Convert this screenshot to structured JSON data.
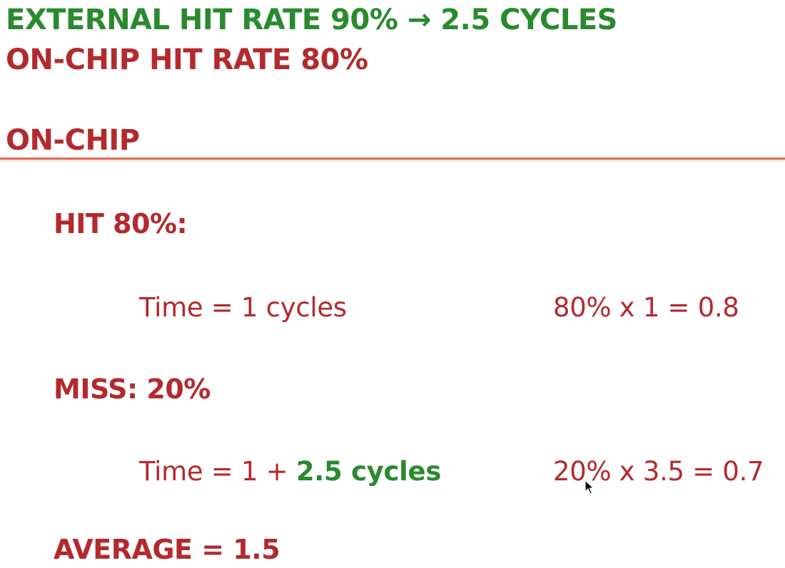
{
  "header": {
    "line1": "EXTERNAL HIT RATE 90% → 2.5 CYCLES",
    "line2": "ON-CHIP HIT RATE 80%"
  },
  "section": {
    "title": "ON-CHIP"
  },
  "hit": {
    "label": "HIT 80%:",
    "time": "Time = 1 cycles",
    "calc": "80% x 1 = 0.8"
  },
  "miss": {
    "label": "MISS: 20%",
    "time_prefix": "Time = 1 + ",
    "time_highlight": "2.5 cycles",
    "calc": "20% x 3.5 = 0.7"
  },
  "average": {
    "label": "AVERAGE = 1.5"
  },
  "colors": {
    "green": "#2a8a2e",
    "red": "#b32a2e",
    "rule": "#e06a55"
  },
  "icons": {
    "cursor": "mouse-pointer-icon"
  }
}
